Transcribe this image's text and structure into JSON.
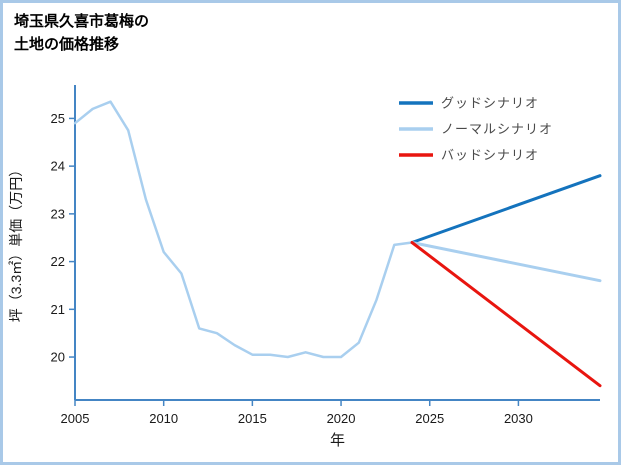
{
  "header": {
    "title_line1": "埼玉県久喜市葛梅の",
    "title_line2": "土地の価格推移"
  },
  "colors": {
    "border": "#a9c9e8",
    "axis": "#4485c4",
    "tick_text": "#1a1a1a",
    "legend_text": "#4a4a4a",
    "good": "#1473bd",
    "normal": "#a9cfef",
    "bad": "#e8150f"
  },
  "chart_data": {
    "type": "line",
    "title": "埼玉県久喜市葛梅の土地の価格推移",
    "xlabel": "年",
    "ylabel": "坪（3.3㎡）単価（万円）",
    "xlim": [
      2005,
      2034.6
    ],
    "ylim": [
      19.1,
      25.7
    ],
    "xticks": [
      2005,
      2010,
      2015,
      2020,
      2025,
      2030
    ],
    "yticks": [
      20,
      21,
      22,
      23,
      24,
      25
    ],
    "grid": false,
    "legend_position": "top-right",
    "series": [
      {
        "id": "historical",
        "label": "",
        "color": "#a9cfef",
        "width": 2.5,
        "x": [
          2005,
          2006,
          2007,
          2008,
          2009,
          2010,
          2011,
          2012,
          2013,
          2014,
          2015,
          2016,
          2017,
          2018,
          2019,
          2020,
          2021,
          2022,
          2023,
          2024
        ],
        "y": [
          24.9,
          25.2,
          25.35,
          24.75,
          23.3,
          22.2,
          21.75,
          20.6,
          20.5,
          20.25,
          20.05,
          20.05,
          20.0,
          20.1,
          20.0,
          20.0,
          20.3,
          21.2,
          22.35,
          22.4
        ]
      },
      {
        "id": "good",
        "label": "グッドシナリオ",
        "color": "#1473bd",
        "width": 3,
        "x": [
          2024,
          2034.6
        ],
        "y": [
          22.4,
          23.8
        ]
      },
      {
        "id": "normal",
        "label": "ノーマルシナリオ",
        "color": "#a9cfef",
        "width": 3,
        "x": [
          2024,
          2034.6
        ],
        "y": [
          22.4,
          21.6
        ]
      },
      {
        "id": "bad",
        "label": "バッドシナリオ",
        "color": "#e8150f",
        "width": 3,
        "x": [
          2024,
          2034.6
        ],
        "y": [
          22.4,
          19.4
        ]
      }
    ]
  }
}
